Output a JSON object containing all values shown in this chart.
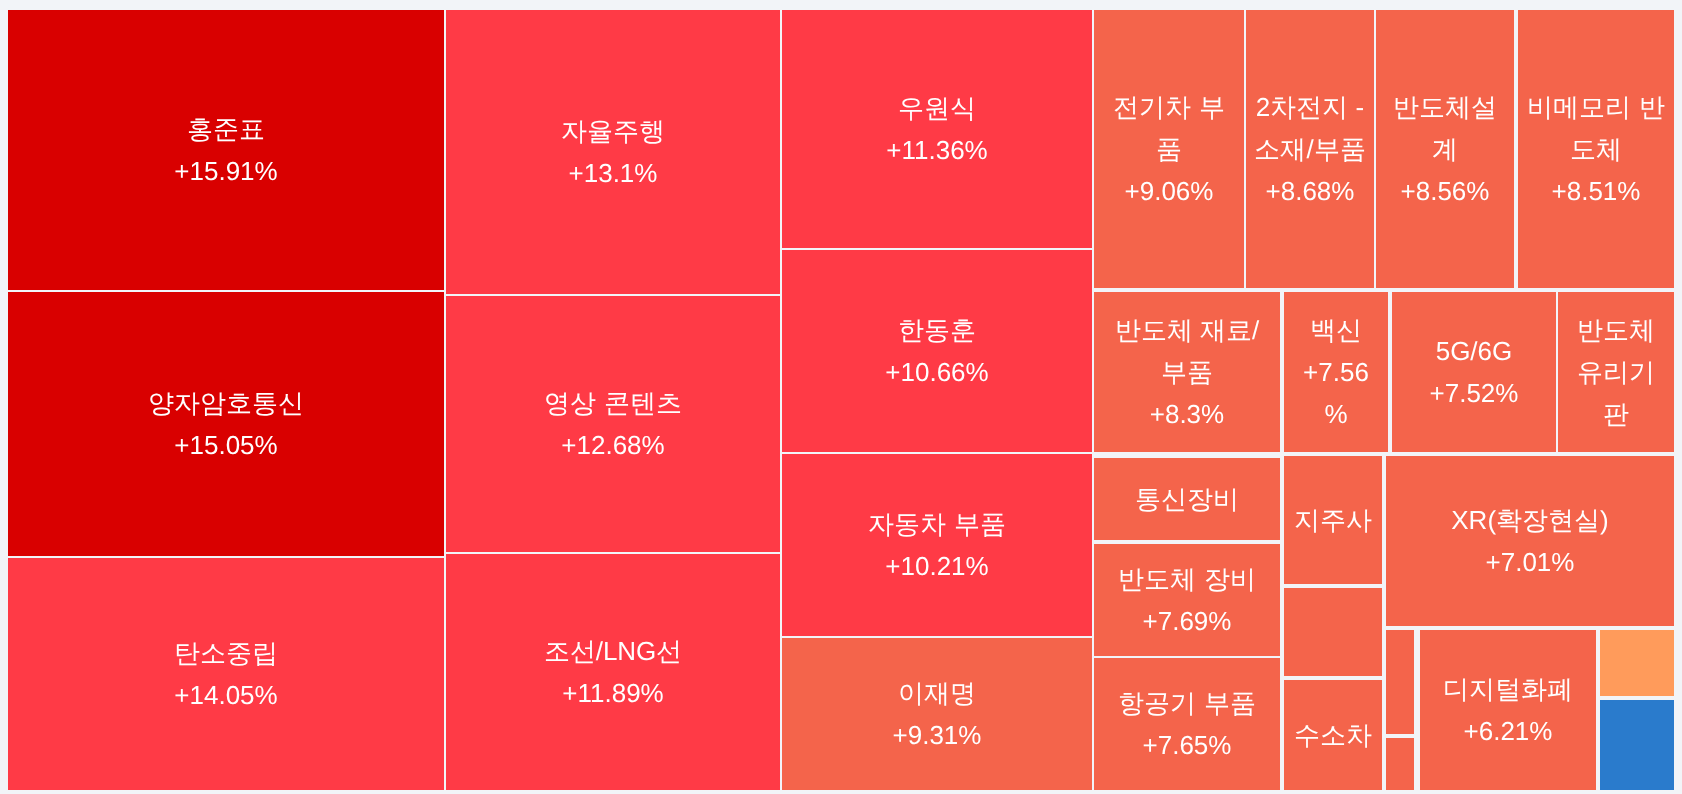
{
  "chart_data": {
    "type": "other",
    "categories": [
      "홍준표",
      "양자암호통신",
      "탄소중립",
      "자율주행",
      "영상 콘텐츠",
      "조선/LNG선",
      "우원식",
      "한동훈",
      "자동차 부품",
      "이재명",
      "전기차 부품",
      "2차전지 - 소재/부품",
      "반도체설계",
      "비메모리 반도체",
      "반도체 재료/부품",
      "백신",
      "5G/6G",
      "반도체 유리기판",
      "통신장비",
      "반도체 장비",
      "항공기 부품",
      "지주사",
      null,
      "수소차",
      "XR(확장현실)",
      null,
      null,
      "디지털화폐",
      null,
      null
    ],
    "values": [
      15.91,
      15.05,
      14.05,
      13.1,
      12.68,
      11.89,
      11.36,
      10.66,
      10.21,
      9.31,
      9.06,
      8.68,
      8.56,
      8.51,
      8.3,
      7.56,
      7.52,
      null,
      null,
      7.69,
      7.65,
      null,
      null,
      null,
      7.01,
      null,
      null,
      6.21,
      null,
      null
    ],
    "value_labels": [
      "+15.91%",
      "+15.05%",
      "+14.05%",
      "+13.1%",
      "+12.68%",
      "+11.89%",
      "+11.36%",
      "+10.66%",
      "+10.21%",
      "+9.31%",
      "+9.06%",
      "+8.68%",
      "+8.56%",
      "+8.51%",
      "+8.3%",
      "+7.56%",
      "+7.52%",
      null,
      null,
      "+7.69%",
      "+7.65%",
      null,
      null,
      null,
      "+7.01%",
      null,
      null,
      "+6.21%",
      null,
      null
    ],
    "colors": [
      "#d90000",
      "#d90000",
      "#ff3a46",
      "#ff3a46",
      "#ff3a46",
      "#ff3a46",
      "#ff3a46",
      "#ff3a46",
      "#ff3a46",
      "#f4644b",
      "#f4644b",
      "#f4644b",
      "#f4644b",
      "#f4644b",
      "#f4644b",
      "#f4644b",
      "#f4644b",
      "#f4644b",
      "#f4644b",
      "#f4644b",
      "#f4644b",
      "#f4644b",
      "#f4644b",
      "#f4644b",
      "#f4644b",
      "#f4644b",
      "#f4644b",
      "#f4644b",
      "#ff9b5b",
      "#2a7bcc"
    ]
  }
}
